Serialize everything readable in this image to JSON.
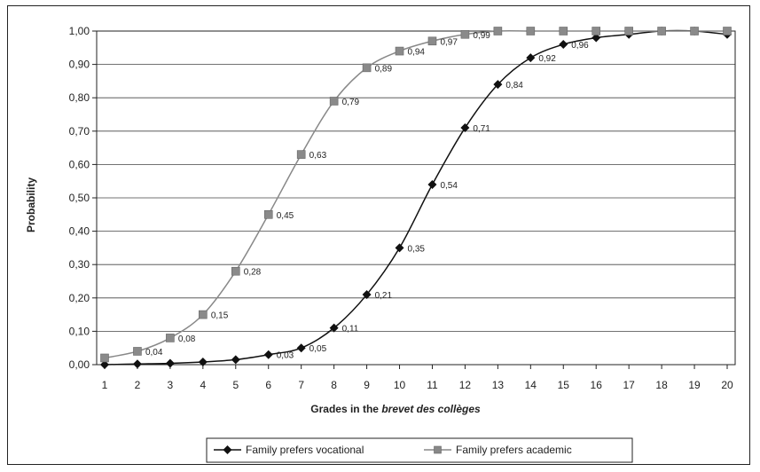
{
  "chart_data": {
    "type": "line",
    "title": "",
    "xlabel_prefix": "Grades in the ",
    "xlabel_italic": "brevet des collèges",
    "ylabel": "Probability",
    "x": [
      1,
      2,
      3,
      4,
      5,
      6,
      7,
      8,
      9,
      10,
      11,
      12,
      13,
      14,
      15,
      16,
      17,
      18,
      19,
      20
    ],
    "xlim": [
      1,
      20
    ],
    "ylim": [
      0,
      1
    ],
    "yticks": [
      "0,00",
      "0,10",
      "0,20",
      "0,30",
      "0,40",
      "0,50",
      "0,60",
      "0,70",
      "0,80",
      "0,90",
      "1,00"
    ],
    "xticks": [
      "1",
      "2",
      "3",
      "4",
      "5",
      "6",
      "7",
      "8",
      "9",
      "10",
      "11",
      "12",
      "13",
      "14",
      "15",
      "16",
      "17",
      "18",
      "19",
      "20"
    ],
    "grid": true,
    "legend_position": "bottom",
    "series": [
      {
        "name": "Family prefers vocational",
        "marker": "diamond",
        "color": "#111111",
        "values": [
          0.0,
          0.002,
          0.004,
          0.008,
          0.015,
          0.03,
          0.05,
          0.11,
          0.21,
          0.35,
          0.54,
          0.71,
          0.84,
          0.92,
          0.96,
          0.98,
          0.99,
          1.0,
          1.0,
          0.99
        ],
        "labels": [
          "",
          "",
          "",
          "",
          "",
          "0,03",
          "0,05",
          "0,11",
          "0,21",
          "0,35",
          "0,54",
          "0,71",
          "0,84",
          "0,92",
          "0,96",
          "",
          "",
          "",
          "",
          ""
        ]
      },
      {
        "name": "Family prefers academic",
        "marker": "square",
        "color": "#888888",
        "values": [
          0.02,
          0.04,
          0.08,
          0.15,
          0.28,
          0.45,
          0.63,
          0.79,
          0.89,
          0.94,
          0.97,
          0.99,
          1.0,
          1.0,
          1.0,
          1.0,
          1.0,
          1.0,
          1.0,
          1.0
        ],
        "labels": [
          "",
          "0,04",
          "0,08",
          "0,15",
          "0,28",
          "0,45",
          "0,63",
          "0,79",
          "0,89",
          "0,94",
          "0,97",
          "0,99",
          "",
          "",
          "",
          "",
          "",
          "",
          "",
          ""
        ]
      }
    ]
  }
}
